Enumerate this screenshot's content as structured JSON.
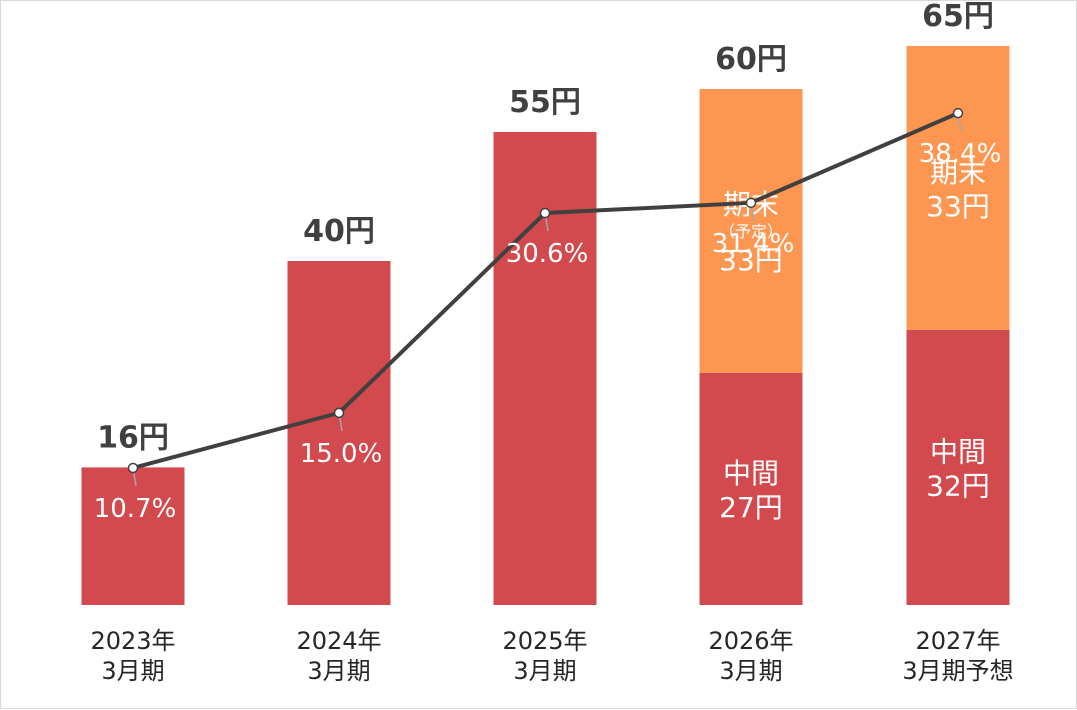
{
  "chart_data": {
    "type": "bar",
    "stacked": true,
    "unit": "円",
    "ylim": [
      0,
      70
    ],
    "grid": false,
    "categories": [
      [
        "2023年",
        "3月期"
      ],
      [
        "2024年",
        "3月期"
      ],
      [
        "2025年",
        "3月期"
      ],
      [
        "2026年",
        "3月期"
      ],
      [
        "2027年",
        "3月期予想"
      ]
    ],
    "totals": [
      16,
      40,
      55,
      60,
      65
    ],
    "total_labels": [
      "16円",
      "40円",
      "55円",
      "60円",
      "65円"
    ],
    "series": [
      {
        "values": [
          16,
          40,
          55,
          27,
          32
        ],
        "color": "#d24a4d",
        "labels": [
          null,
          null,
          null,
          [
            "中間",
            "27円"
          ],
          [
            "中間",
            "32円"
          ]
        ]
      },
      {
        "values": [
          0,
          0,
          0,
          33,
          33
        ],
        "color": "#fd9650",
        "labels": [
          null,
          null,
          null,
          [
            "期末",
            "（予定）",
            "33円"
          ],
          [
            "期末",
            "33円"
          ]
        ]
      }
    ],
    "line": {
      "values": [
        10.7,
        15.0,
        30.6,
        31.4,
        38.4
      ],
      "labels": [
        "10.7%",
        "15.0%",
        "30.6%",
        "31.4%",
        "38.4%"
      ],
      "color": "#404040",
      "ylim": [
        0,
        47
      ]
    }
  }
}
